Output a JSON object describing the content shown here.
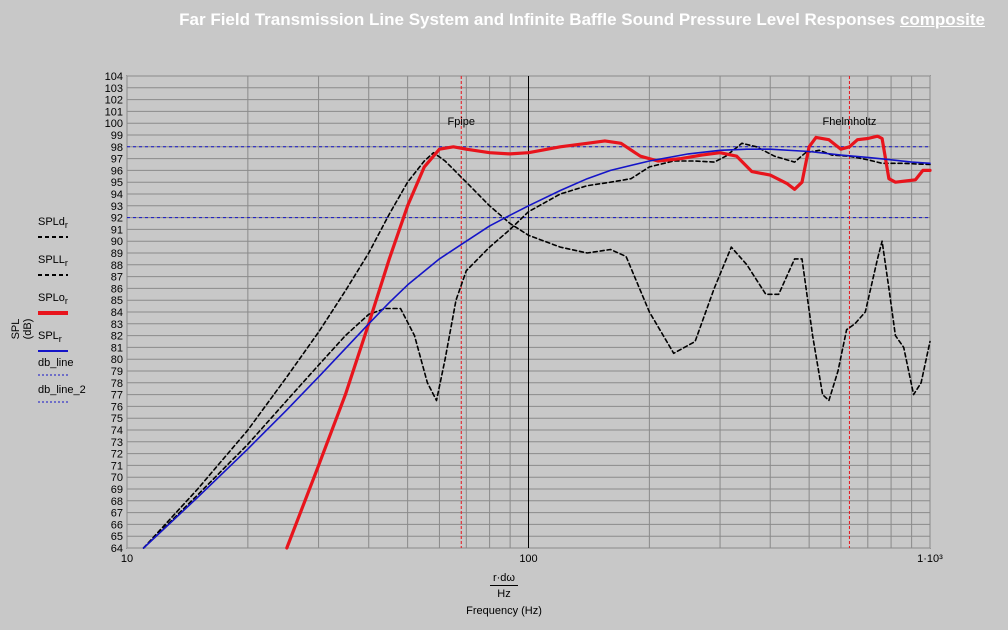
{
  "title": {
    "main": "Far Field Transmission Line System and Infinite Baffle Sound Pressure Level Responses",
    "link": "composite"
  },
  "axes": {
    "ylabel": "SPL (dB)",
    "xlabel_num": "r·dω",
    "xlabel_den": "Hz",
    "xtitle": "Frequency (Hz)",
    "yticks": [
      "64",
      "65",
      "66",
      "67",
      "68",
      "69",
      "70",
      "71",
      "72",
      "73",
      "74",
      "75",
      "76",
      "77",
      "78",
      "79",
      "80",
      "81",
      "82",
      "83",
      "84",
      "85",
      "86",
      "87",
      "88",
      "89",
      "90",
      "91",
      "92",
      "93",
      "94",
      "95",
      "96",
      "97",
      "98",
      "99",
      "100",
      "101",
      "102",
      "103",
      "104"
    ],
    "xticks": [
      "10",
      "100",
      "1·10³"
    ]
  },
  "legend": [
    {
      "label": "SPLd",
      "sub": "r",
      "style": "black-dash"
    },
    {
      "label": "SPLL",
      "sub": "r",
      "style": "black-dash"
    },
    {
      "label": "SPLo",
      "sub": "r",
      "style": "red-thick"
    },
    {
      "label": "SPL",
      "sub": "r",
      "style": "blue-solid"
    },
    {
      "label": "db_line",
      "sub": "",
      "style": "blue-dot"
    },
    {
      "label": "db_line_2",
      "sub": "",
      "style": "blue-dot"
    }
  ],
  "annotations": [
    "Fpipe",
    "Fhelmholtz"
  ],
  "colors": {
    "red": "#e8141c",
    "blue": "#1414c8",
    "black": "#000000",
    "bg": "#c8c8c8",
    "grid": "#808080"
  },
  "chart_data": {
    "type": "line",
    "title": "Far Field Transmission Line System and Infinite Baffle Sound Pressure Level Responses composite",
    "xlabel": "r·dω / Hz  Frequency (Hz)",
    "ylabel": "SPL (dB)",
    "xscale": "log",
    "xlim": [
      10,
      1000
    ],
    "ylim": [
      64,
      104
    ],
    "grid": true,
    "hlines": [
      {
        "y": 98,
        "color": "blue",
        "style": "dotted"
      },
      {
        "y": 92,
        "color": "blue",
        "style": "dotted"
      }
    ],
    "vlines": [
      {
        "x": 68,
        "label": "Fpipe",
        "color": "red",
        "style": "dotted"
      },
      {
        "x": 630,
        "label": "Fhelmholtz",
        "color": "red",
        "style": "dotted"
      },
      {
        "x": 100,
        "color": "black",
        "style": "solid"
      }
    ],
    "series": [
      {
        "name": "SPLd_r",
        "style": "black-dash",
        "points": [
          [
            11,
            64
          ],
          [
            15,
            69
          ],
          [
            20,
            74
          ],
          [
            25,
            78.5
          ],
          [
            30,
            82.3
          ],
          [
            35,
            85.8
          ],
          [
            40,
            89
          ],
          [
            45,
            92.3
          ],
          [
            50,
            95
          ],
          [
            55,
            96.8
          ],
          [
            58,
            97.5
          ],
          [
            62,
            96.8
          ],
          [
            70,
            95
          ],
          [
            80,
            93
          ],
          [
            90,
            91.5
          ],
          [
            100,
            90.5
          ],
          [
            120,
            89.5
          ],
          [
            140,
            89
          ],
          [
            160,
            89.3
          ],
          [
            175,
            88.7
          ],
          [
            200,
            84
          ],
          [
            230,
            80.5
          ],
          [
            260,
            81.5
          ],
          [
            290,
            86
          ],
          [
            320,
            89.5
          ],
          [
            350,
            88
          ],
          [
            390,
            85.5
          ],
          [
            420,
            85.5
          ],
          [
            460,
            88.5
          ],
          [
            480,
            88.5
          ],
          [
            510,
            82
          ],
          [
            540,
            77
          ],
          [
            560,
            76.5
          ],
          [
            590,
            79
          ],
          [
            620,
            82.5
          ],
          [
            650,
            83
          ],
          [
            690,
            84
          ],
          [
            740,
            88.5
          ],
          [
            760,
            90
          ],
          [
            790,
            86
          ],
          [
            820,
            82
          ],
          [
            860,
            81
          ],
          [
            910,
            77
          ],
          [
            950,
            78
          ],
          [
            1000,
            81.5
          ]
        ]
      },
      {
        "name": "SPLL_r",
        "style": "black-dash",
        "points": [
          [
            11,
            64
          ],
          [
            15,
            68.5
          ],
          [
            20,
            72.8
          ],
          [
            25,
            76.5
          ],
          [
            30,
            79.5
          ],
          [
            35,
            82
          ],
          [
            40,
            83.8
          ],
          [
            44,
            84.3
          ],
          [
            48,
            84.3
          ],
          [
            52,
            82
          ],
          [
            56,
            78
          ],
          [
            59,
            76.5
          ],
          [
            62,
            80
          ],
          [
            66,
            85
          ],
          [
            70,
            87.5
          ],
          [
            80,
            89.5
          ],
          [
            90,
            91
          ],
          [
            100,
            92.5
          ],
          [
            120,
            94
          ],
          [
            140,
            94.7
          ],
          [
            160,
            95
          ],
          [
            180,
            95.3
          ],
          [
            200,
            96.3
          ],
          [
            230,
            96.8
          ],
          [
            260,
            96.8
          ],
          [
            290,
            96.7
          ],
          [
            310,
            97.2
          ],
          [
            340,
            98.3
          ],
          [
            370,
            98
          ],
          [
            410,
            97.2
          ],
          [
            460,
            96.7
          ],
          [
            490,
            97.5
          ],
          [
            530,
            97.7
          ],
          [
            570,
            97.3
          ],
          [
            630,
            97.2
          ],
          [
            700,
            96.9
          ],
          [
            760,
            96.6
          ],
          [
            850,
            96.6
          ],
          [
            1000,
            96.5
          ]
        ]
      },
      {
        "name": "SPLo_r",
        "style": "red-thick",
        "points": [
          [
            25,
            64
          ],
          [
            30,
            71
          ],
          [
            35,
            77
          ],
          [
            40,
            83
          ],
          [
            45,
            88.5
          ],
          [
            50,
            93
          ],
          [
            55,
            96.3
          ],
          [
            60,
            97.8
          ],
          [
            65,
            98
          ],
          [
            70,
            97.8
          ],
          [
            80,
            97.5
          ],
          [
            90,
            97.4
          ],
          [
            100,
            97.5
          ],
          [
            120,
            98
          ],
          [
            140,
            98.3
          ],
          [
            155,
            98.5
          ],
          [
            170,
            98.3
          ],
          [
            190,
            97.2
          ],
          [
            210,
            96.8
          ],
          [
            240,
            97
          ],
          [
            270,
            97.3
          ],
          [
            300,
            97.5
          ],
          [
            330,
            97.2
          ],
          [
            360,
            95.9
          ],
          [
            400,
            95.6
          ],
          [
            440,
            94.9
          ],
          [
            460,
            94.4
          ],
          [
            480,
            95
          ],
          [
            500,
            98
          ],
          [
            520,
            98.8
          ],
          [
            560,
            98.6
          ],
          [
            600,
            97.8
          ],
          [
            630,
            98
          ],
          [
            660,
            98.6
          ],
          [
            700,
            98.7
          ],
          [
            740,
            98.9
          ],
          [
            760,
            98.7
          ],
          [
            790,
            95.3
          ],
          [
            820,
            95
          ],
          [
            870,
            95.1
          ],
          [
            920,
            95.2
          ],
          [
            960,
            96
          ],
          [
            1000,
            96
          ]
        ]
      },
      {
        "name": "SPL_r",
        "style": "blue-solid",
        "points": [
          [
            11,
            64
          ],
          [
            15,
            68.3
          ],
          [
            20,
            72.4
          ],
          [
            25,
            75.7
          ],
          [
            30,
            78.5
          ],
          [
            35,
            80.9
          ],
          [
            40,
            83
          ],
          [
            45,
            84.8
          ],
          [
            50,
            86.3
          ],
          [
            60,
            88.5
          ],
          [
            70,
            90
          ],
          [
            80,
            91.3
          ],
          [
            90,
            92.2
          ],
          [
            100,
            93
          ],
          [
            120,
            94.3
          ],
          [
            140,
            95.3
          ],
          [
            160,
            96
          ],
          [
            200,
            96.8
          ],
          [
            250,
            97.4
          ],
          [
            300,
            97.7
          ],
          [
            350,
            97.8
          ],
          [
            400,
            97.8
          ],
          [
            500,
            97.6
          ],
          [
            600,
            97.3
          ],
          [
            700,
            97.1
          ],
          [
            800,
            96.9
          ],
          [
            900,
            96.7
          ],
          [
            1000,
            96.6
          ]
        ]
      }
    ]
  }
}
